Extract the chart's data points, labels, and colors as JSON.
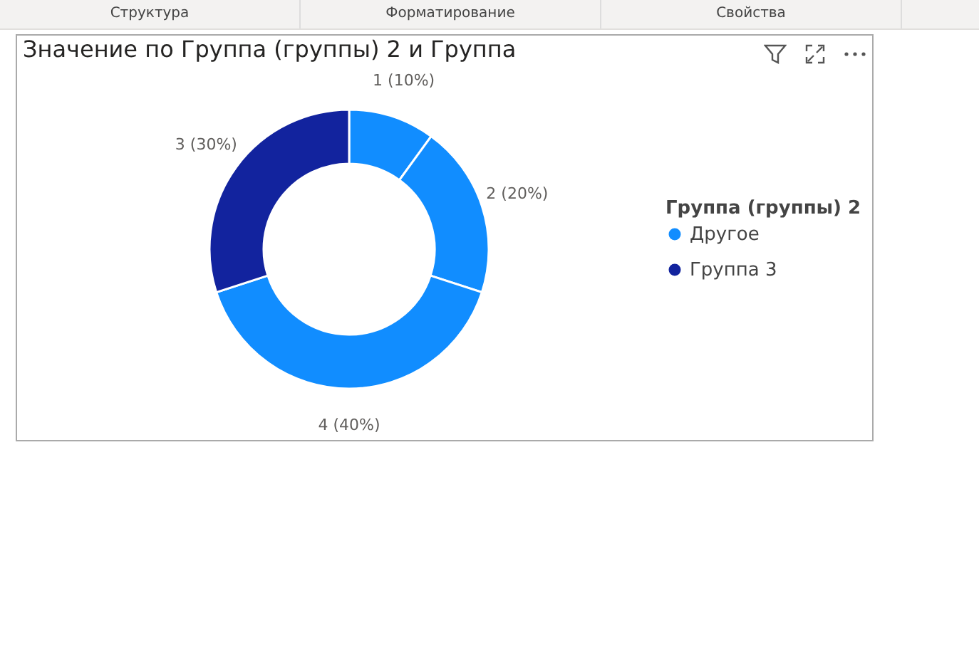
{
  "chart_data": {
    "type": "donut",
    "title": "Значение по Группа (группы) 2 и Группа",
    "legend_title": "Группа (группы) 2",
    "legend": "right",
    "categories": [
      "Другое",
      null,
      null,
      "Группа 3"
    ],
    "values": [
      1,
      2,
      4,
      3
    ],
    "value_labels": [
      "1 (10%)",
      "2 (20%)",
      "4 (40%)",
      "3 (30%)"
    ],
    "colors": [
      "#118dff",
      "#118dff",
      "#118dff",
      "#12239e"
    ],
    "annotations": [
      "Структура",
      "Форматирование",
      "Свойства"
    ]
  }
}
